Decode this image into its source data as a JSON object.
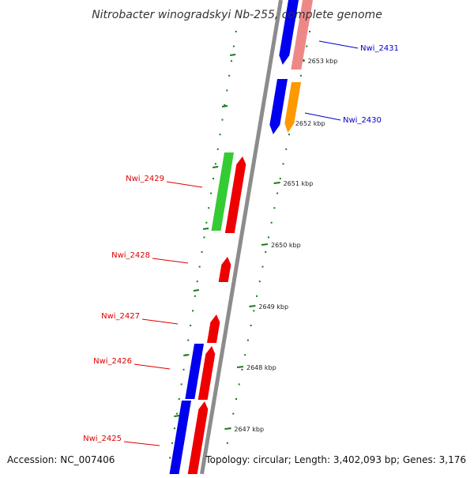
{
  "title": "Nitrobacter winogradskyi Nb-255, complete genome",
  "footer": {
    "accession": "Accession: NC_007406",
    "topology": "Topology: circular; Length: 3,402,093 bp; Genes: 3,176"
  },
  "colors": {
    "backbone": "#8c8c8c",
    "tick": "#1a7a1a",
    "forward_label": "#0000cc",
    "reverse_label": "#dd0000",
    "blue": "#0000ee",
    "red": "#ee0000",
    "green": "#33cc33",
    "orange": "#ff9900",
    "pink": "#ee8888"
  },
  "ticks": [
    {
      "label": "2653 kbp"
    },
    {
      "label": "2652 kbp"
    },
    {
      "label": "2651 kbp"
    },
    {
      "label": "2650 kbp"
    },
    {
      "label": "2649 kbp"
    },
    {
      "label": "2648 kbp"
    },
    {
      "label": "2647 kbp"
    }
  ],
  "genes": [
    {
      "label": "Nwi_2431",
      "strand": "forward",
      "color": "pink"
    },
    {
      "label": "Nwi_2430",
      "strand": "forward",
      "color": "orange"
    },
    {
      "label": "Nwi_2429",
      "strand": "reverse",
      "color": "red"
    },
    {
      "label": "Nwi_2428",
      "strand": "reverse",
      "color": "red"
    },
    {
      "label": "Nwi_2427",
      "strand": "reverse",
      "color": "red"
    },
    {
      "label": "Nwi_2426",
      "strand": "reverse",
      "color": "red"
    },
    {
      "label": "Nwi_2425",
      "strand": "reverse",
      "color": "red"
    }
  ]
}
